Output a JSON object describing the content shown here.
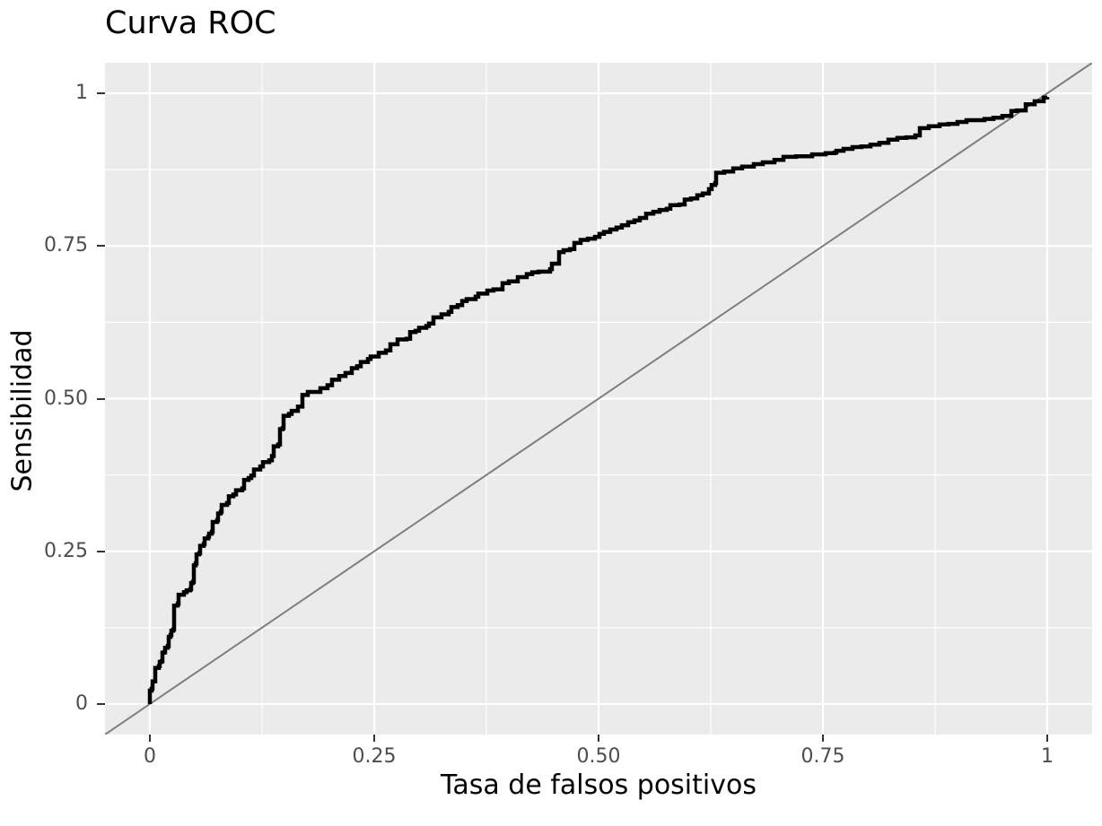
{
  "chart": {
    "title": "Curva ROC",
    "xlabel": "Tasa de falsos positivos",
    "ylabel": "Sensibilidad"
  },
  "chart_data": {
    "type": "line",
    "subtype": "roc_step_curve",
    "title": "Curva ROC",
    "xlabel": "Tasa de falsos positivos",
    "ylabel": "Sensibilidad",
    "xlim": [
      0,
      1
    ],
    "ylim": [
      0,
      1
    ],
    "axis_expansion": 0.05,
    "grid": "major+minor",
    "legend_position": "none",
    "x_ticks": {
      "values": [
        0,
        0.25,
        0.5,
        0.75,
        1
      ],
      "labels": [
        "0",
        "0.25",
        "0.50",
        "0.75",
        "1"
      ]
    },
    "y_ticks": {
      "values": [
        0,
        0.25,
        0.5,
        0.75,
        1
      ],
      "labels": [
        "0",
        "0.25",
        "0.50",
        "0.75",
        "1"
      ]
    },
    "x_minor_ticks": [
      0.125,
      0.375,
      0.625,
      0.875
    ],
    "y_minor_ticks": [
      0.125,
      0.375,
      0.625,
      0.875
    ],
    "colors": {
      "panel_background": "#EBEBEB",
      "grid": "#FFFFFF",
      "tick_text": "#4D4D4D",
      "tick_mark": "#333333",
      "title_text": "#000000",
      "axis_title_text": "#000000",
      "roc_curve": "#000000",
      "diagonal_line": "#7E7E7E"
    },
    "series": [
      {
        "name": "curva_roc",
        "style": "step",
        "color": "#000000",
        "stroke_width": 4.5,
        "points": [
          [
            0.0,
            0.0
          ],
          [
            0.0,
            0.022
          ],
          [
            0.002,
            0.025
          ],
          [
            0.003,
            0.037
          ],
          [
            0.006,
            0.04
          ],
          [
            0.006,
            0.059
          ],
          [
            0.01,
            0.062
          ],
          [
            0.011,
            0.069
          ],
          [
            0.013,
            0.07
          ],
          [
            0.014,
            0.084
          ],
          [
            0.016,
            0.085
          ],
          [
            0.017,
            0.092
          ],
          [
            0.02,
            0.095
          ],
          [
            0.021,
            0.11
          ],
          [
            0.023,
            0.113
          ],
          [
            0.024,
            0.12
          ],
          [
            0.026,
            0.122
          ],
          [
            0.027,
            0.161
          ],
          [
            0.031,
            0.164
          ],
          [
            0.032,
            0.179
          ],
          [
            0.038,
            0.183
          ],
          [
            0.041,
            0.186
          ],
          [
            0.045,
            0.188
          ],
          [
            0.046,
            0.198
          ],
          [
            0.048,
            0.2
          ],
          [
            0.049,
            0.227
          ],
          [
            0.051,
            0.23
          ],
          [
            0.052,
            0.245
          ],
          [
            0.055,
            0.247
          ],
          [
            0.056,
            0.259
          ],
          [
            0.06,
            0.262
          ],
          [
            0.061,
            0.271
          ],
          [
            0.065,
            0.274
          ],
          [
            0.066,
            0.279
          ],
          [
            0.069,
            0.282
          ],
          [
            0.07,
            0.298
          ],
          [
            0.075,
            0.301
          ],
          [
            0.076,
            0.312
          ],
          [
            0.079,
            0.315
          ],
          [
            0.08,
            0.326
          ],
          [
            0.086,
            0.329
          ],
          [
            0.088,
            0.34
          ],
          [
            0.093,
            0.343
          ],
          [
            0.096,
            0.35
          ],
          [
            0.103,
            0.353
          ],
          [
            0.105,
            0.367
          ],
          [
            0.11,
            0.37
          ],
          [
            0.113,
            0.374
          ],
          [
            0.116,
            0.384
          ],
          [
            0.123,
            0.389
          ],
          [
            0.126,
            0.396
          ],
          [
            0.133,
            0.399
          ],
          [
            0.136,
            0.406
          ],
          [
            0.138,
            0.422
          ],
          [
            0.143,
            0.425
          ],
          [
            0.145,
            0.45
          ],
          [
            0.148,
            0.452
          ],
          [
            0.149,
            0.472
          ],
          [
            0.155,
            0.475
          ],
          [
            0.158,
            0.48
          ],
          [
            0.165,
            0.487
          ],
          [
            0.17,
            0.506
          ],
          [
            0.176,
            0.511
          ],
          [
            0.19,
            0.517
          ],
          [
            0.198,
            0.522
          ],
          [
            0.203,
            0.531
          ],
          [
            0.211,
            0.537
          ],
          [
            0.218,
            0.542
          ],
          [
            0.225,
            0.55
          ],
          [
            0.231,
            0.553
          ],
          [
            0.235,
            0.56
          ],
          [
            0.243,
            0.565
          ],
          [
            0.246,
            0.569
          ],
          [
            0.255,
            0.575
          ],
          [
            0.263,
            0.579
          ],
          [
            0.268,
            0.589
          ],
          [
            0.276,
            0.597
          ],
          [
            0.286,
            0.598
          ],
          [
            0.29,
            0.609
          ],
          [
            0.296,
            0.611
          ],
          [
            0.3,
            0.616
          ],
          [
            0.308,
            0.619
          ],
          [
            0.311,
            0.623
          ],
          [
            0.316,
            0.633
          ],
          [
            0.325,
            0.638
          ],
          [
            0.333,
            0.642
          ],
          [
            0.336,
            0.65
          ],
          [
            0.343,
            0.653
          ],
          [
            0.348,
            0.66
          ],
          [
            0.353,
            0.663
          ],
          [
            0.363,
            0.667
          ],
          [
            0.366,
            0.672
          ],
          [
            0.376,
            0.677
          ],
          [
            0.383,
            0.679
          ],
          [
            0.393,
            0.689
          ],
          [
            0.4,
            0.692
          ],
          [
            0.41,
            0.699
          ],
          [
            0.42,
            0.704
          ],
          [
            0.426,
            0.707
          ],
          [
            0.433,
            0.708
          ],
          [
            0.446,
            0.712
          ],
          [
            0.448,
            0.721
          ],
          [
            0.456,
            0.74
          ],
          [
            0.461,
            0.743
          ],
          [
            0.468,
            0.745
          ],
          [
            0.473,
            0.755
          ],
          [
            0.48,
            0.76
          ],
          [
            0.488,
            0.762
          ],
          [
            0.496,
            0.765
          ],
          [
            0.501,
            0.77
          ],
          [
            0.506,
            0.773
          ],
          [
            0.513,
            0.777
          ],
          [
            0.52,
            0.78
          ],
          [
            0.526,
            0.784
          ],
          [
            0.533,
            0.789
          ],
          [
            0.54,
            0.792
          ],
          [
            0.546,
            0.796
          ],
          [
            0.553,
            0.803
          ],
          [
            0.561,
            0.806
          ],
          [
            0.568,
            0.809
          ],
          [
            0.576,
            0.811
          ],
          [
            0.58,
            0.817
          ],
          [
            0.59,
            0.818
          ],
          [
            0.596,
            0.826
          ],
          [
            0.603,
            0.828
          ],
          [
            0.61,
            0.833
          ],
          [
            0.616,
            0.836
          ],
          [
            0.623,
            0.843
          ],
          [
            0.626,
            0.85
          ],
          [
            0.63,
            0.853
          ],
          [
            0.631,
            0.87
          ],
          [
            0.64,
            0.872
          ],
          [
            0.65,
            0.877
          ],
          [
            0.66,
            0.88
          ],
          [
            0.673,
            0.884
          ],
          [
            0.683,
            0.887
          ],
          [
            0.696,
            0.891
          ],
          [
            0.706,
            0.896
          ],
          [
            0.72,
            0.897
          ],
          [
            0.738,
            0.9
          ],
          [
            0.753,
            0.902
          ],
          [
            0.763,
            0.903
          ],
          [
            0.765,
            0.906
          ],
          [
            0.773,
            0.909
          ],
          [
            0.783,
            0.912
          ],
          [
            0.793,
            0.913
          ],
          [
            0.803,
            0.916
          ],
          [
            0.813,
            0.919
          ],
          [
            0.823,
            0.924
          ],
          [
            0.833,
            0.927
          ],
          [
            0.843,
            0.928
          ],
          [
            0.853,
            0.931
          ],
          [
            0.858,
            0.943
          ],
          [
            0.868,
            0.946
          ],
          [
            0.88,
            0.949
          ],
          [
            0.89,
            0.95
          ],
          [
            0.9,
            0.953
          ],
          [
            0.91,
            0.956
          ],
          [
            0.92,
            0.956
          ],
          [
            0.93,
            0.958
          ],
          [
            0.94,
            0.96
          ],
          [
            0.95,
            0.963
          ],
          [
            0.96,
            0.971
          ],
          [
            0.966,
            0.972
          ],
          [
            0.976,
            0.982
          ],
          [
            0.986,
            0.987
          ],
          [
            0.996,
            0.993
          ],
          [
            1.0,
            0.994
          ]
        ]
      },
      {
        "name": "linea_referencia_diagonal",
        "style": "identity_line",
        "color": "#7E7E7E",
        "stroke_width": 2,
        "points": [
          [
            0,
            0
          ],
          [
            1,
            1
          ]
        ]
      }
    ]
  }
}
